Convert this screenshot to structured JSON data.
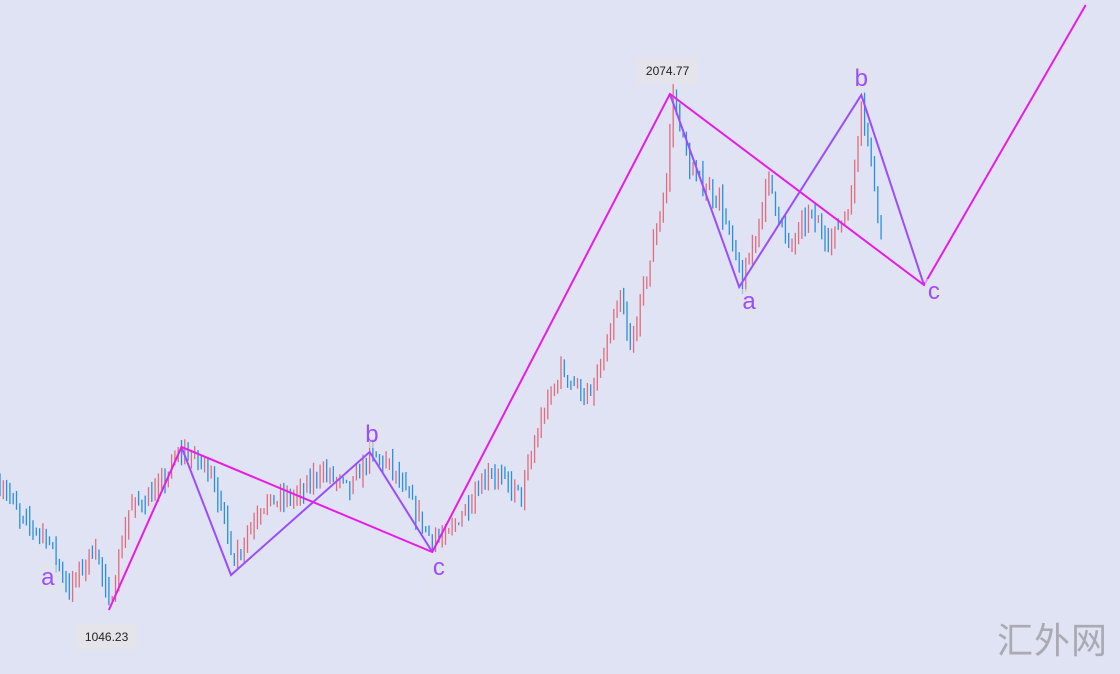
{
  "chart_data": {
    "type": "candlestick",
    "title": "",
    "xlabel": "",
    "ylabel": "",
    "grid": false,
    "colors": {
      "up": "#e06c7c",
      "down": "#2b8fe0",
      "primary_wave": "#e61de6",
      "sub_wave": "#9b4dff",
      "background": "#dfe3f3"
    },
    "price_path": [
      [
        1.5,
        1295.4
      ],
      [
        6,
        1225.6
      ],
      [
        14,
        1195.7
      ],
      [
        21,
        1086.1
      ],
      [
        29,
        1175.8
      ],
      [
        33,
        1050.2
      ],
      [
        39,
        1245.6
      ],
      [
        48,
        1285.4
      ],
      [
        55,
        1365.2
      ],
      [
        64,
        1325.3
      ],
      [
        71,
        1145.9
      ],
      [
        79,
        1255.5
      ],
      [
        91,
        1275.5
      ],
      [
        97,
        1325.3
      ],
      [
        106,
        1285.4
      ],
      [
        112,
        1355.2
      ],
      [
        118,
        1335.3
      ],
      [
        130,
        1195.7
      ],
      [
        135,
        1185.8
      ],
      [
        148,
        1325.3
      ],
      [
        158,
        1275.5
      ],
      [
        164,
        1424.9
      ],
      [
        170,
        1524.6
      ],
      [
        179,
        1464.8
      ],
      [
        188,
        1664.2
      ],
      [
        191,
        1564.5
      ],
      [
        197,
        1743.9
      ],
      [
        202,
        1903.3
      ],
      [
        204,
        2074.77
      ],
      [
        209,
        1923.3
      ],
      [
        218,
        1863.5
      ],
      [
        225,
        1694.0
      ],
      [
        233,
        1903.3
      ],
      [
        239,
        1763.8
      ],
      [
        245,
        1833.6
      ],
      [
        252,
        1783.7
      ],
      [
        258,
        1863.5
      ],
      [
        261,
        2066.8
      ],
      [
        267,
        1803.7
      ]
    ],
    "primary_wave": [
      [
        33,
        1046.23
      ],
      [
        55,
        1371.2
      ],
      [
        131,
        1161.8
      ],
      [
        203,
        2074.77
      ],
      [
        280,
        1694.0
      ],
      [
        329,
        2252.2
      ]
    ],
    "sub_waves": [
      [
        [
          55,
          1371.2
        ],
        [
          70,
          1116.0
        ],
        [
          112,
          1361.2
        ],
        [
          131,
          1161.8
        ]
      ],
      [
        [
          203,
          2074.77
        ],
        [
          224,
          1690.1
        ],
        [
          261,
          2072.8
        ],
        [
          280,
          1694.0
        ]
      ]
    ],
    "wave_labels": [
      {
        "text": "a",
        "x": 14.5,
        "price": 1110
      },
      {
        "text": "b",
        "x": 112.7,
        "price": 1395
      },
      {
        "text": "c",
        "x": 133,
        "price": 1130
      },
      {
        "text": "a",
        "x": 227,
        "price": 1660
      },
      {
        "text": "b",
        "x": 261,
        "price": 2105
      },
      {
        "text": "c",
        "x": 283,
        "price": 1680
      }
    ],
    "callouts": [
      {
        "text": "2074.77",
        "x": 203,
        "price": 2074.77,
        "pos": "above"
      },
      {
        "text": "1046.23",
        "x": 33,
        "price": 1046.23,
        "pos": "below"
      }
    ]
  },
  "watermark": "汇外网"
}
